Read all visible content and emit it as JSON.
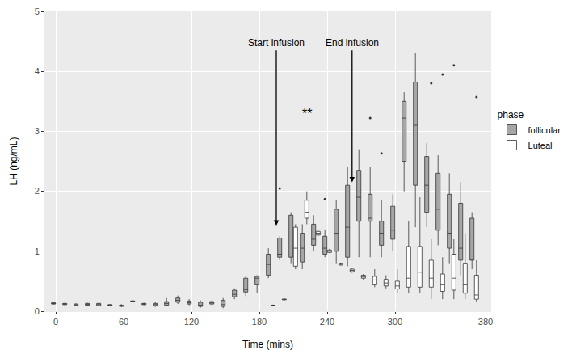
{
  "chart_data": {
    "type": "box",
    "xlabel": "Time (mins)",
    "ylabel": "LH (ng/mL)",
    "xlim": [
      -10,
      385
    ],
    "xticks": [
      0,
      60,
      120,
      180,
      240,
      300,
      380
    ],
    "ylim": [
      0,
      5
    ],
    "yticks": [
      0,
      1,
      2,
      3,
      4,
      5
    ],
    "grid": true,
    "legend": "right",
    "legend_title": "phase",
    "annotations": [
      {
        "text": "Start infusion",
        "x": 195,
        "y": 1.43,
        "arrow": true
      },
      {
        "text": "End infusion",
        "x": 262,
        "y": 2.15,
        "arrow": true
      },
      {
        "text": "**",
        "x": 222,
        "y": 3.3,
        "arrow": false
      }
    ],
    "series": [
      {
        "name": "follicular",
        "color": "#a6a6a6",
        "x": [
          0,
          10,
          20,
          30,
          40,
          50,
          60,
          70,
          80,
          90,
          100,
          110,
          120,
          130,
          140,
          150,
          160,
          170,
          180,
          190,
          200,
          210,
          220,
          230,
          240,
          250,
          260,
          270,
          280,
          290,
          300,
          310,
          320,
          330,
          340,
          350,
          360,
          370
        ],
        "min": [
          0.11,
          0.1,
          0.08,
          0.09,
          0.08,
          0.08,
          0.07,
          0.15,
          0.1,
          0.07,
          0.08,
          0.12,
          0.1,
          0.06,
          0.1,
          0.05,
          0.2,
          0.25,
          0.3,
          0.55,
          0.85,
          0.8,
          0.7,
          1.0,
          0.9,
          0.8,
          0.75,
          0.9,
          0.9,
          0.9,
          1.0,
          2.0,
          1.4,
          1.4,
          1.1,
          0.8,
          0.6,
          0.7
        ],
        "q1": [
          0.12,
          0.11,
          0.09,
          0.1,
          0.09,
          0.09,
          0.08,
          0.16,
          0.11,
          0.09,
          0.1,
          0.15,
          0.12,
          0.08,
          0.12,
          0.08,
          0.24,
          0.32,
          0.45,
          0.6,
          0.9,
          0.9,
          0.82,
          1.1,
          0.95,
          1.0,
          0.9,
          1.5,
          1.5,
          1.1,
          1.2,
          2.5,
          2.1,
          1.65,
          1.35,
          1.05,
          0.85,
          0.85
        ],
        "median": [
          0.13,
          0.12,
          0.1,
          0.11,
          0.11,
          0.1,
          0.09,
          0.17,
          0.12,
          0.11,
          0.13,
          0.18,
          0.14,
          0.1,
          0.14,
          0.11,
          0.28,
          0.36,
          0.55,
          0.78,
          0.95,
          1.22,
          1.05,
          1.2,
          1.05,
          1.3,
          1.4,
          1.9,
          1.55,
          1.3,
          1.35,
          3.22,
          3.1,
          2.1,
          1.7,
          1.3,
          1.05,
          0.86
        ],
        "q3": [
          0.14,
          0.13,
          0.12,
          0.13,
          0.13,
          0.11,
          0.1,
          0.17,
          0.13,
          0.13,
          0.16,
          0.22,
          0.17,
          0.15,
          0.16,
          0.18,
          0.35,
          0.55,
          0.58,
          0.95,
          1.22,
          1.6,
          1.3,
          1.45,
          1.25,
          1.7,
          2.1,
          2.35,
          1.95,
          1.5,
          1.75,
          3.5,
          3.82,
          2.58,
          2.3,
          1.95,
          1.8,
          1.55
        ],
        "max": [
          0.15,
          0.14,
          0.13,
          0.14,
          0.14,
          0.12,
          0.12,
          0.18,
          0.14,
          0.15,
          0.22,
          0.26,
          0.2,
          0.18,
          0.18,
          0.22,
          0.38,
          0.58,
          0.6,
          1.05,
          1.25,
          1.65,
          1.45,
          1.6,
          1.35,
          1.85,
          2.4,
          2.7,
          2.4,
          1.85,
          1.95,
          3.65,
          4.3,
          2.8,
          2.6,
          2.3,
          2.15,
          1.65
        ],
        "outliers": [
          {
            "x": 200,
            "y": 2.05
          },
          {
            "x": 240,
            "y": 1.87
          },
          {
            "x": 280,
            "y": 3.22
          },
          {
            "x": 290,
            "y": 2.63
          }
        ]
      },
      {
        "name": "Luteal",
        "color": "#ffffff",
        "x": [
          190,
          200,
          210,
          220,
          230,
          240,
          250,
          260,
          270,
          280,
          290,
          300,
          310,
          320,
          330,
          340,
          350,
          360,
          370
        ],
        "min": [
          0.09,
          0.18,
          0.7,
          1.45,
          1.25,
          0.97,
          0.76,
          0.64,
          0.52,
          0.4,
          0.38,
          0.3,
          0.3,
          0.3,
          0.2,
          0.2,
          0.2,
          0.2,
          0.15
        ],
        "q1": [
          0.1,
          0.19,
          0.75,
          1.55,
          1.27,
          0.98,
          0.77,
          0.66,
          0.55,
          0.45,
          0.42,
          0.37,
          0.4,
          0.4,
          0.4,
          0.33,
          0.35,
          0.3,
          0.2
        ],
        "median": [
          0.1,
          0.2,
          1.05,
          1.65,
          1.3,
          1.0,
          0.78,
          0.68,
          0.57,
          0.52,
          0.47,
          0.42,
          0.55,
          0.65,
          0.55,
          0.45,
          0.55,
          0.45,
          0.27
        ],
        "q3": [
          0.1,
          0.2,
          1.4,
          1.85,
          1.33,
          1.02,
          0.8,
          0.7,
          0.6,
          0.58,
          0.53,
          0.5,
          1.08,
          1.08,
          0.85,
          0.62,
          0.95,
          0.8,
          0.6
        ],
        "max": [
          0.11,
          0.21,
          1.45,
          2.0,
          1.35,
          1.04,
          0.81,
          0.72,
          0.62,
          0.7,
          0.6,
          0.7,
          1.5,
          1.9,
          1.2,
          0.9,
          1.2,
          1.3,
          0.85
        ],
        "outliers": [
          {
            "x": 330,
            "y": 3.8
          },
          {
            "x": 340,
            "y": 3.95
          },
          {
            "x": 350,
            "y": 4.1
          },
          {
            "x": 370,
            "y": 3.57
          }
        ]
      }
    ]
  }
}
